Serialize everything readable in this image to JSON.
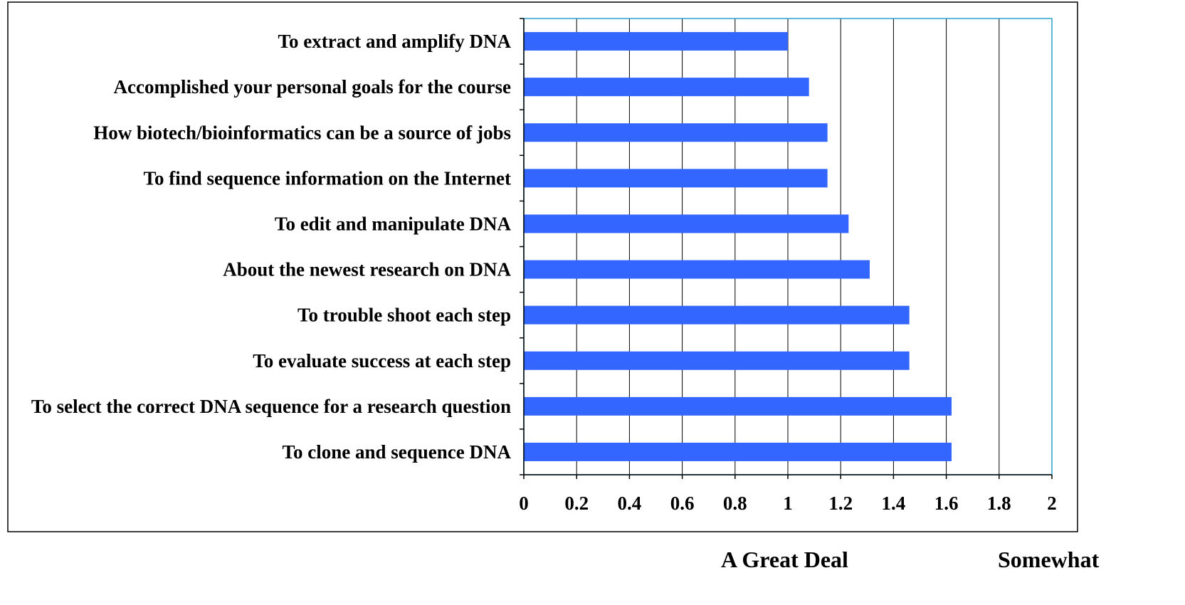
{
  "chart_data": {
    "type": "bar",
    "orientation": "horizontal",
    "categories": [
      "To extract and amplify DNA",
      "Accomplished your personal goals for the course",
      "How biotech/bioinformatics can be a source of jobs",
      "To find sequence information on the Internet",
      "To edit and manipulate DNA",
      "About the newest research on DNA",
      "To trouble shoot each step",
      "To evaluate success at each step",
      "To select the correct DNA sequence for a research question",
      "To clone and sequence DNA"
    ],
    "values": [
      1.0,
      1.08,
      1.15,
      1.15,
      1.23,
      1.31,
      1.46,
      1.46,
      1.62,
      1.62
    ],
    "xlim": [
      0,
      2
    ],
    "xticks": [
      "0",
      "0.2",
      "0.4",
      "0.6",
      "0.8",
      "1",
      "1.2",
      "1.4",
      "1.6",
      "1.8",
      "2"
    ],
    "grid": "vertical",
    "bar_color": "#3366FF",
    "annotations": [
      "A Great Deal",
      "Somewhat"
    ]
  }
}
